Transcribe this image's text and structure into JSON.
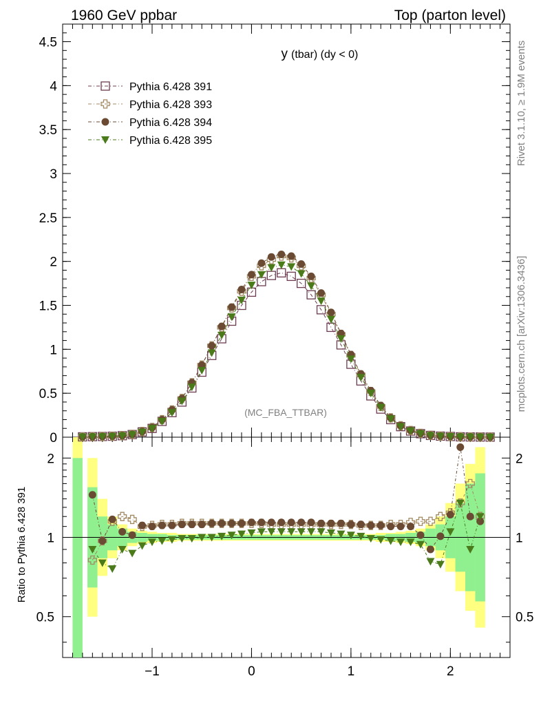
{
  "header": {
    "left": "1960 GeV ppbar",
    "right": "Top (parton level)"
  },
  "side": {
    "rivet": "Rivet 3.1.10, ≥ 1.9M events",
    "mcplots": "mcplots.cern.ch [arXiv:1306.3436]"
  },
  "plot": {
    "title_main": "y",
    "title_sub": "(tbar) (dy < 0)",
    "watermark": "(MC_FBA_TTBAR)",
    "ratio_ylabel": "Ratio to Pythia 6.428 391"
  },
  "chart_data": [
    {
      "type": "line",
      "panel": "main",
      "ylim": [
        0,
        4.7
      ],
      "xlim": [
        -1.9,
        2.6
      ],
      "y_ticks": [
        "0",
        "0.5",
        "1",
        "1.5",
        "2",
        "2.5",
        "3",
        "3.5",
        "4",
        "4.5"
      ],
      "x": [
        -1.7,
        -1.6,
        -1.5,
        -1.4,
        -1.3,
        -1.2,
        -1.1,
        -1.0,
        -0.9,
        -0.8,
        -0.7,
        -0.6,
        -0.5,
        -0.4,
        -0.3,
        -0.2,
        -0.1,
        0.0,
        0.1,
        0.2,
        0.3,
        0.4,
        0.5,
        0.6,
        0.7,
        0.8,
        0.9,
        1.0,
        1.1,
        1.2,
        1.3,
        1.4,
        1.5,
        1.6,
        1.7,
        1.8,
        1.9,
        2.0,
        2.1,
        2.2,
        2.3,
        2.4
      ],
      "legend_position": "top-left",
      "series": [
        {
          "name": "Pythia 6.428 391",
          "color": "#6b3a4f",
          "marker": "open-square",
          "values": [
            0.004,
            0.006,
            0.008,
            0.011,
            0.017,
            0.03,
            0.06,
            0.1,
            0.18,
            0.28,
            0.4,
            0.56,
            0.74,
            0.93,
            1.12,
            1.32,
            1.5,
            1.65,
            1.77,
            1.84,
            1.87,
            1.83,
            1.75,
            1.62,
            1.45,
            1.25,
            1.05,
            0.83,
            0.64,
            0.47,
            0.32,
            0.2,
            0.12,
            0.07,
            0.04,
            0.02,
            0.012,
            0.008,
            0.004,
            0.003,
            0.002,
            0.001
          ]
        },
        {
          "name": "Pythia 6.428 393",
          "color": "#a08860",
          "marker": "open-cross",
          "values": [
            0.004,
            0.006,
            0.008,
            0.012,
            0.018,
            0.032,
            0.065,
            0.11,
            0.2,
            0.31,
            0.44,
            0.62,
            0.82,
            1.04,
            1.25,
            1.47,
            1.66,
            1.83,
            1.95,
            2.02,
            2.06,
            2.04,
            1.95,
            1.81,
            1.62,
            1.4,
            1.17,
            0.93,
            0.71,
            0.52,
            0.35,
            0.22,
            0.13,
            0.076,
            0.044,
            0.022,
            0.013,
            0.009,
            0.005,
            0.003,
            0.002,
            0.001
          ]
        },
        {
          "name": "Pythia 6.428 394",
          "color": "#6b4a33",
          "marker": "filled-circle",
          "values": [
            0.004,
            0.006,
            0.009,
            0.012,
            0.018,
            0.032,
            0.065,
            0.11,
            0.2,
            0.31,
            0.44,
            0.62,
            0.82,
            1.04,
            1.26,
            1.48,
            1.68,
            1.85,
            1.98,
            2.05,
            2.08,
            2.06,
            1.97,
            1.83,
            1.64,
            1.42,
            1.18,
            0.94,
            0.72,
            0.53,
            0.36,
            0.22,
            0.13,
            0.077,
            0.044,
            0.022,
            0.013,
            0.009,
            0.005,
            0.003,
            0.002,
            0.001
          ]
        },
        {
          "name": "Pythia 6.428 395",
          "color": "#4a7a1a",
          "marker": "filled-triangle-down",
          "values": [
            0.004,
            0.005,
            0.007,
            0.01,
            0.016,
            0.029,
            0.058,
            0.1,
            0.18,
            0.28,
            0.41,
            0.57,
            0.76,
            0.96,
            1.16,
            1.37,
            1.56,
            1.73,
            1.85,
            1.93,
            1.96,
            1.94,
            1.86,
            1.72,
            1.55,
            1.34,
            1.12,
            0.89,
            0.68,
            0.5,
            0.34,
            0.21,
            0.12,
            0.072,
            0.041,
            0.02,
            0.012,
            0.008,
            0.004,
            0.003,
            0.002,
            0.001
          ]
        }
      ]
    },
    {
      "type": "line",
      "panel": "ratio",
      "ylim": [
        0.35,
        2.4
      ],
      "log_y": true,
      "xlim": [
        -1.9,
        2.6
      ],
      "x_ticks": [
        "−1",
        "0",
        "1",
        "2"
      ],
      "y_ticks": [
        "0.5",
        "1",
        "2"
      ],
      "x": [
        -1.6,
        -1.5,
        -1.4,
        -1.3,
        -1.2,
        -1.1,
        -1.0,
        -0.9,
        -0.8,
        -0.7,
        -0.6,
        -0.5,
        -0.4,
        -0.3,
        -0.2,
        -0.1,
        0.0,
        0.1,
        0.2,
        0.3,
        0.4,
        0.5,
        0.6,
        0.7,
        0.8,
        0.9,
        1.0,
        1.1,
        1.2,
        1.3,
        1.4,
        1.5,
        1.6,
        1.7,
        1.8,
        1.9,
        2.0,
        2.1,
        2.2,
        2.3
      ],
      "band": {
        "green": [
          1.55,
          1.2,
          1.12,
          1.08,
          1.05,
          1.04,
          1.03,
          1.03,
          1.02,
          1.02,
          1.02,
          1.02,
          1.02,
          1.02,
          1.02,
          1.02,
          1.02,
          1.02,
          1.02,
          1.02,
          1.02,
          1.02,
          1.02,
          1.02,
          1.02,
          1.02,
          1.02,
          1.02,
          1.02,
          1.02,
          1.03,
          1.03,
          1.04,
          1.05,
          1.08,
          1.12,
          1.2,
          1.35,
          1.6,
          1.75
        ],
        "yellow": [
          2.0,
          1.4,
          1.2,
          1.12,
          1.08,
          1.06,
          1.05,
          1.04,
          1.04,
          1.03,
          1.03,
          1.03,
          1.03,
          1.03,
          1.03,
          1.03,
          1.03,
          1.03,
          1.03,
          1.03,
          1.03,
          1.03,
          1.03,
          1.03,
          1.03,
          1.03,
          1.03,
          1.03,
          1.03,
          1.04,
          1.04,
          1.05,
          1.06,
          1.08,
          1.12,
          1.2,
          1.35,
          1.6,
          1.9,
          2.2
        ]
      },
      "series": [
        {
          "name": "Pythia 6.428 393",
          "color": "#a08860",
          "marker": "open-cross",
          "values": [
            0.82,
            0.97,
            1.15,
            1.2,
            1.17,
            1.1,
            1.11,
            1.12,
            1.12,
            1.13,
            1.13,
            1.13,
            1.13,
            1.13,
            1.13,
            1.13,
            1.13,
            1.13,
            1.12,
            1.12,
            1.12,
            1.12,
            1.12,
            1.12,
            1.12,
            1.12,
            1.12,
            1.11,
            1.11,
            1.11,
            1.12,
            1.12,
            1.14,
            1.15,
            1.15,
            1.2,
            1.24,
            1.35,
            1.6,
            1.2
          ]
        },
        {
          "name": "Pythia 6.428 394",
          "color": "#6b4a33",
          "marker": "filled-circle",
          "values": [
            1.45,
            0.97,
            1.17,
            1.05,
            1.02,
            1.11,
            1.1,
            1.11,
            1.11,
            1.12,
            1.12,
            1.12,
            1.13,
            1.13,
            1.13,
            1.13,
            1.14,
            1.14,
            1.14,
            1.14,
            1.14,
            1.14,
            1.14,
            1.13,
            1.13,
            1.13,
            1.12,
            1.12,
            1.11,
            1.11,
            1.1,
            1.1,
            1.1,
            1.02,
            0.9,
            1.01,
            1.22,
            2.2,
            1.2,
            1.15
          ]
        },
        {
          "name": "Pythia 6.428 395",
          "color": "#4a7a1a",
          "marker": "filled-triangle-down",
          "values": [
            0.9,
            0.8,
            0.76,
            0.9,
            0.87,
            0.93,
            0.96,
            0.97,
            0.98,
            0.99,
            0.99,
            1.0,
            1.0,
            1.01,
            1.02,
            1.03,
            1.04,
            1.05,
            1.05,
            1.05,
            1.05,
            1.05,
            1.05,
            1.05,
            1.04,
            1.03,
            1.02,
            1.01,
            0.99,
            0.98,
            0.97,
            0.96,
            0.96,
            0.94,
            0.81,
            0.79,
            1.05,
            1.35,
            0.9,
            1.2
          ]
        }
      ]
    }
  ]
}
